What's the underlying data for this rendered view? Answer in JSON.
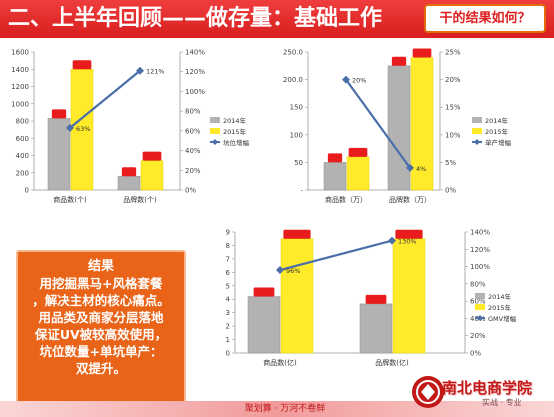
{
  "header": {
    "title": "二、上半年回顾——做存量：基础工作",
    "badge": "干的结果如何？"
  },
  "summary": {
    "lines": [
      "结果",
      "用挖掘黑马+风格套餐",
      "，解决主材的核心痛点。",
      "用品类及商家分层落地",
      "保证UV被较高效使用，",
      "坑位数量+单坑单产：",
      "双提升。"
    ]
  },
  "footer": {
    "text": "聚划算 · 万河不卷鲜",
    "logo_text": "南北电商学院",
    "logo_sub": "实战 · 专业"
  },
  "colors": {
    "bar_2014": "#b2b2b2",
    "bar_2015": "#ffeb2a",
    "line": "#4a6fa8",
    "marker": "#e81c1c",
    "header": "#e02a2a",
    "summary_bg": "#e96418"
  },
  "chart_data": [
    {
      "type": "bar",
      "categories": [
        "商品数(个)",
        "品牌数(个)"
      ],
      "series": [
        {
          "name": "2014年",
          "values": [
            830,
            160
          ]
        },
        {
          "name": "2015年",
          "values": [
            1400,
            340
          ]
        }
      ],
      "line": {
        "name": "坑位增幅",
        "values": [
          63,
          121
        ],
        "labels": [
          "63%",
          "121%"
        ]
      },
      "ylim": [
        0,
        1600
      ],
      "yticks": [
        "0",
        "200",
        "400",
        "600",
        "800",
        "1000",
        "1200",
        "1400",
        "1600"
      ],
      "y2lim": [
        0,
        140
      ],
      "y2ticks": [
        "0%",
        "20%",
        "40%",
        "60%",
        "80%",
        "100%",
        "120%",
        "140%"
      ],
      "legend": "right"
    },
    {
      "type": "bar",
      "categories": [
        "商品数（万）",
        "品牌数（万）"
      ],
      "series": [
        {
          "name": "2014年",
          "values": [
            50,
            225
          ]
        },
        {
          "name": "2015年",
          "values": [
            60,
            240
          ]
        }
      ],
      "line": {
        "name": "单产增幅",
        "values": [
          20,
          4
        ],
        "labels": [
          "20%",
          "4%"
        ]
      },
      "ylim": [
        0,
        250
      ],
      "yticks": [
        "-",
        "50",
        "100",
        "150",
        "200",
        "250"
      ],
      "ytick_prefix": [
        "",
        "",
        "",
        "",
        "200",
        "250"
      ],
      "y2lim": [
        0,
        25
      ],
      "y2ticks": [
        "0%",
        "5%",
        "10%",
        "15%",
        "20%",
        "25%"
      ],
      "legend": "right"
    },
    {
      "type": "bar",
      "categories": [
        "商品数(亿)",
        "品牌数(亿)"
      ],
      "series": [
        {
          "name": "2014年",
          "values": [
            4.2,
            3.65
          ]
        },
        {
          "name": "2015年",
          "values": [
            8.5,
            8.5
          ]
        }
      ],
      "line": {
        "name": "GMV增幅",
        "values": [
          96,
          130
        ],
        "labels": [
          "96%",
          "130%"
        ]
      },
      "ylim": [
        0,
        9
      ],
      "yticks": [
        "0",
        "1",
        "2",
        "3",
        "4",
        "5",
        "6",
        "7",
        "8",
        "9"
      ],
      "y2lim": [
        0,
        140
      ],
      "y2ticks": [
        "0%",
        "20%",
        "40%",
        "60%",
        "80%",
        "100%",
        "120%",
        "140%"
      ],
      "legend": "right"
    }
  ]
}
